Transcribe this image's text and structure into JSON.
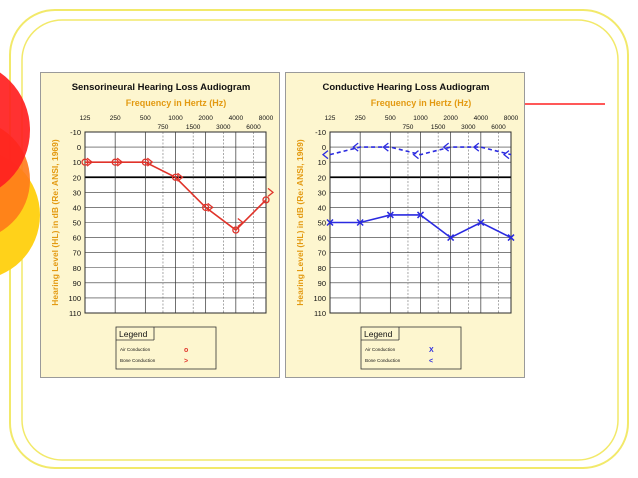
{
  "slide": {
    "frame_color": "#f2e96a",
    "accent_colors": [
      "#ff1f1f",
      "#ff7a1a",
      "#ffd21a"
    ],
    "accent_line_color": "#ff2020"
  },
  "chart_data": [
    {
      "type": "line",
      "title": "Sensorineural Hearing Loss Audiogram",
      "xlabel": "Frequency in Hertz (Hz)",
      "ylabel": "Hearing Level (HL) in dB (Re: ANSI, 1969)",
      "x_ticks_top": [
        "125",
        "250",
        "500",
        "1000",
        "2000",
        "4000",
        "8000"
      ],
      "x_ticks_sub": [
        "750",
        "1500",
        "3000",
        "6000"
      ],
      "y_ticks": [
        "-10",
        "0",
        "10",
        "20",
        "30",
        "40",
        "50",
        "60",
        "70",
        "80",
        "90",
        "100",
        "110"
      ],
      "ylim": [
        -10,
        110
      ],
      "y_inverted": true,
      "x_scale": "log",
      "grid": true,
      "reference_line_db": 20,
      "series": [
        {
          "name": "Air Conduction",
          "marker": "o",
          "marker_label": "o",
          "line": "solid",
          "color": "#e0332a",
          "points": [
            [
              125,
              10
            ],
            [
              250,
              10
            ],
            [
              500,
              10
            ],
            [
              1000,
              20
            ],
            [
              2000,
              40
            ],
            [
              4000,
              55
            ],
            [
              8000,
              35
            ]
          ]
        },
        {
          "name": "Bone Conduction",
          "marker": ">",
          "marker_label": ">",
          "line": "none",
          "color": "#e0332a",
          "points": [
            [
              125,
              10
            ],
            [
              250,
              10
            ],
            [
              500,
              10
            ],
            [
              1000,
              20
            ],
            [
              2000,
              40
            ],
            [
              4000,
              50
            ],
            [
              8000,
              30
            ]
          ]
        }
      ],
      "legend": {
        "title": "Legend",
        "position": "bottom"
      }
    },
    {
      "type": "line",
      "title": "Conductive Hearing Loss Audiogram",
      "xlabel": "Frequency in Hertz (Hz)",
      "ylabel": "Hearing Level (HL) in dB (Re: ANSI, 1969)",
      "x_ticks_top": [
        "125",
        "250",
        "500",
        "1000",
        "2000",
        "4000",
        "8000"
      ],
      "x_ticks_sub": [
        "750",
        "1500",
        "3000",
        "6000"
      ],
      "y_ticks": [
        "-10",
        "0",
        "10",
        "20",
        "30",
        "40",
        "50",
        "60",
        "70",
        "80",
        "90",
        "100",
        "110"
      ],
      "ylim": [
        -10,
        110
      ],
      "y_inverted": true,
      "x_scale": "log",
      "grid": true,
      "reference_line_db": 20,
      "series": [
        {
          "name": "Air Conduction",
          "marker": "x",
          "marker_label": "X",
          "line": "solid",
          "color": "#2a2ae0",
          "points": [
            [
              125,
              50
            ],
            [
              250,
              50
            ],
            [
              500,
              45
            ],
            [
              1000,
              45
            ],
            [
              2000,
              60
            ],
            [
              4000,
              50
            ],
            [
              8000,
              60
            ]
          ]
        },
        {
          "name": "Bone Conduction",
          "marker": "<",
          "marker_label": "<",
          "line": "dashed",
          "color": "#2a2ae0",
          "points": [
            [
              125,
              5
            ],
            [
              250,
              0
            ],
            [
              500,
              0
            ],
            [
              1000,
              5
            ],
            [
              2000,
              0
            ],
            [
              4000,
              0
            ],
            [
              8000,
              5
            ]
          ]
        }
      ],
      "legend": {
        "title": "Legend",
        "position": "bottom"
      }
    }
  ]
}
